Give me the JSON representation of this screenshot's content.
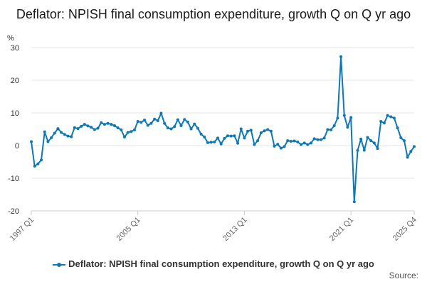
{
  "chart_data": {
    "type": "line",
    "title": "Deflator: NPISH final consumption expenditure, growth Q on Q yr ago",
    "ylabel": "%",
    "xlabel": "",
    "ylim": [
      -20,
      30
    ],
    "yticks": [
      -20,
      -10,
      0,
      10,
      20,
      30
    ],
    "x_start": "1997 Q1",
    "x_end": "2025 Q4",
    "xticks": [
      {
        "label": "1997 Q1",
        "index": 0
      },
      {
        "label": "2005 Q1",
        "index": 32
      },
      {
        "label": "2013 Q1",
        "index": 64
      },
      {
        "label": "2021 Q1",
        "index": 96
      },
      {
        "label": "2025 Q4",
        "index": 115
      }
    ],
    "grid": true,
    "series": [
      {
        "name": "Deflator: NPISH final consumption expenditure, growth Q on Q yr ago",
        "color": "#0e78b5",
        "values": [
          1.2,
          -6.3,
          -5.6,
          -4.4,
          4.2,
          1.2,
          2.4,
          3.8,
          5.2,
          4.0,
          3.4,
          2.9,
          2.7,
          5.5,
          5.2,
          5.9,
          6.5,
          6.0,
          5.6,
          4.9,
          5.3,
          7.0,
          6.5,
          6.8,
          6.5,
          6.1,
          5.4,
          4.8,
          2.6,
          4.0,
          4.3,
          4.8,
          7.4,
          7.1,
          7.8,
          6.2,
          6.8,
          8.1,
          7.6,
          9.9,
          6.8,
          5.4,
          5.1,
          5.8,
          7.9,
          6.1,
          8.0,
          7.2,
          5.1,
          6.6,
          5.3,
          3.5,
          2.6,
          0.9,
          1.0,
          1.1,
          2.3,
          0.5,
          2.2,
          3.0,
          2.9,
          3.0,
          0.7,
          5.1,
          2.3,
          4.4,
          4.7,
          0.3,
          1.5,
          3.9,
          4.5,
          4.9,
          4.4,
          -0.2,
          0.4,
          -0.8,
          -0.3,
          1.5,
          1.3,
          1.4,
          1.1,
          0.3,
          0.8,
          0.3,
          0.8,
          2.1,
          1.8,
          1.8,
          2.3,
          4.9,
          4.8,
          6.1,
          8.4,
          27.2,
          9.2,
          5.6,
          8.6,
          -17.2,
          -1.5,
          2.0,
          -1.4,
          2.5,
          1.5,
          0.8,
          -0.9,
          7.4,
          6.9,
          9.2,
          8.8,
          8.4,
          5.4,
          2.4,
          1.5,
          -3.6,
          -1.8,
          -0.3
        ]
      }
    ],
    "legend": "bottom",
    "source": "Source:"
  }
}
